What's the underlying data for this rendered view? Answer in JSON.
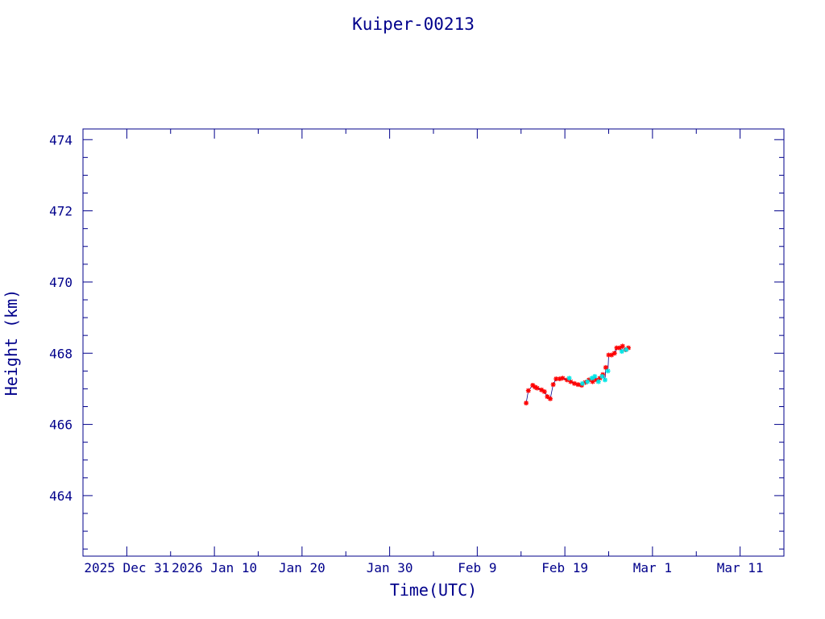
{
  "chart_data": {
    "type": "scatter",
    "title": "Kuiper-00213",
    "xlabel": "Time(UTC)",
    "ylabel": "Height (km)",
    "x_type": "date",
    "xlim": [
      "2025-12-26",
      "2026-03-16"
    ],
    "ylim": [
      462.3,
      474.3
    ],
    "x_ticks": [
      {
        "date": "2025-12-31",
        "label": "2025 Dec 31"
      },
      {
        "date": "2026-01-10",
        "label": "2026 Jan 10"
      },
      {
        "date": "2026-01-20",
        "label": "Jan 20"
      },
      {
        "date": "2026-01-30",
        "label": "Jan 30"
      },
      {
        "date": "2026-02-09",
        "label": "Feb  9"
      },
      {
        "date": "2026-02-19",
        "label": "Feb 19"
      },
      {
        "date": "2026-03-01",
        "label": "Mar  1"
      },
      {
        "date": "2026-03-11",
        "label": "Mar 11"
      }
    ],
    "y_ticks": [
      464,
      466,
      468,
      470,
      472,
      474
    ],
    "grid": false,
    "colors": {
      "axis": "#00008b",
      "line": "#00008b",
      "primary": "#ff0000",
      "secondary": "#00e5e5"
    },
    "series": [
      {
        "marker": "star",
        "color": "#ff0000",
        "x": [
          "2026-02-14T14:00",
          "2026-02-14T20:00",
          "2026-02-15T08:00",
          "2026-02-15T14:00",
          "2026-02-15T20:00",
          "2026-02-16T08:00",
          "2026-02-16T16:00",
          "2026-02-17T00:00",
          "2026-02-17T08:00",
          "2026-02-17T16:00",
          "2026-02-18T00:00",
          "2026-02-18T10:00",
          "2026-02-18T18:00",
          "2026-02-19T06:00",
          "2026-02-19T16:00",
          "2026-02-20T02:00",
          "2026-02-20T12:00",
          "2026-02-20T22:00",
          "2026-02-21T08:00",
          "2026-02-21T18:00",
          "2026-02-22T04:00",
          "2026-02-22T14:00",
          "2026-02-23T00:00",
          "2026-02-23T08:00",
          "2026-02-23T16:00",
          "2026-02-24T00:00",
          "2026-02-24T08:00",
          "2026-02-24T16:00",
          "2026-02-24T22:00",
          "2026-02-25T06:00",
          "2026-02-25T14:00",
          "2026-02-25T22:00",
          "2026-02-26T06:00"
        ],
        "y": [
          466.6,
          466.95,
          467.1,
          467.05,
          467.02,
          466.97,
          466.92,
          466.78,
          466.72,
          467.12,
          467.28,
          467.28,
          467.3,
          467.25,
          467.2,
          467.15,
          467.12,
          467.1,
          467.18,
          467.25,
          467.2,
          467.25,
          467.3,
          467.4,
          467.6,
          467.95,
          467.95,
          468.0,
          468.15,
          468.15,
          468.2,
          468.1,
          468.15
        ]
      },
      {
        "marker": "star",
        "color": "#00e5e5",
        "x": [
          "2026-02-19T12:00",
          "2026-02-21T00:00",
          "2026-02-21T14:00",
          "2026-02-22T02:00",
          "2026-02-22T10:00",
          "2026-02-22T20:00",
          "2026-02-23T06:00",
          "2026-02-23T14:00",
          "2026-02-23T22:00",
          "2026-02-25T12:00",
          "2026-02-26T00:00"
        ],
        "y": [
          467.3,
          467.15,
          467.2,
          467.3,
          467.35,
          467.2,
          467.35,
          467.25,
          467.5,
          468.05,
          468.1
        ]
      }
    ]
  }
}
